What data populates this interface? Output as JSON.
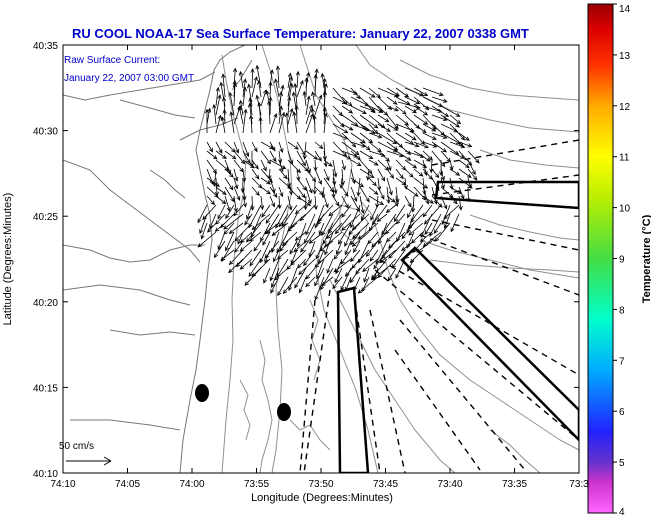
{
  "title": "RU COOL  NOAA-17  Sea Surface Temperature:  January 22, 2007 0338 GMT",
  "annotation": {
    "line1": "Raw Surface Current:",
    "line2": "January 22, 2007 03:00 GMT"
  },
  "scale_label": "50 cm/s",
  "x_axis": {
    "label": "Longitude (Degrees:Minutes)",
    "ticks": [
      "74:10",
      "74:05",
      "74:00",
      "73:55",
      "73:50",
      "73:45",
      "73:40",
      "73:35",
      "73:3"
    ]
  },
  "y_axis": {
    "label": "Latitude (Degrees:Minutes)",
    "ticks": [
      "40:10",
      "40:15",
      "40:20",
      "40:25",
      "40:30",
      "40:35"
    ]
  },
  "colorbar": {
    "label": "Temperature (°C)",
    "ticks": [
      "4",
      "5",
      "6",
      "7",
      "8",
      "9",
      "10",
      "11",
      "12",
      "13",
      "14"
    ],
    "min": 4,
    "max": 14
  },
  "colors": {
    "title": "#0000cc",
    "annotation": "#0000cc",
    "contour": "#808080",
    "coast": "#777777",
    "vectors": "#000000"
  }
}
